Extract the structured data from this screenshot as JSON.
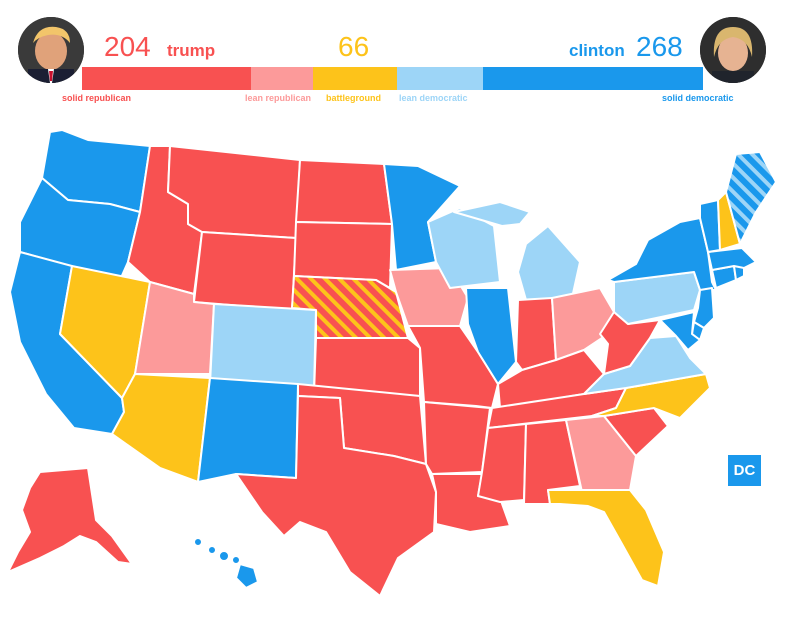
{
  "colors": {
    "solid_republican": "#f85151",
    "lean_republican": "#fc9a9a",
    "battleground": "#fdc31a",
    "lean_democratic": "#9dd5f7",
    "solid_democratic": "#1a98ec"
  },
  "header": {
    "trump": {
      "count": "204",
      "name": "trump"
    },
    "battleground_count": "66",
    "clinton": {
      "name": "clinton",
      "count": "268"
    },
    "segments": [
      {
        "key": "solid_republican",
        "label": "solid republican"
      },
      {
        "key": "lean_republican",
        "label": "lean republican"
      },
      {
        "key": "battleground",
        "label": "battleground"
      },
      {
        "key": "lean_democratic",
        "label": "lean democratic"
      },
      {
        "key": "solid_democratic",
        "label": "solid democratic"
      }
    ]
  },
  "dc": {
    "label": "DC",
    "rating": "solid_democratic"
  },
  "states": {
    "WA": "solid_democratic",
    "OR": "solid_democratic",
    "CA": "solid_democratic",
    "NV": "battleground",
    "ID": "solid_republican",
    "MT": "solid_republican",
    "WY": "solid_republican",
    "UT": "lean_republican",
    "CO": "lean_democratic",
    "AZ": "battleground",
    "NM": "solid_democratic",
    "ND": "solid_republican",
    "SD": "solid_republican",
    "NE": "solid_republican",
    "KS": "solid_republican",
    "OK": "solid_republican",
    "TX": "solid_republican",
    "MN": "solid_democratic",
    "IA": "lean_republican",
    "MO": "solid_republican",
    "AR": "solid_republican",
    "LA": "solid_republican",
    "WI": "lean_democratic",
    "IL": "solid_democratic",
    "MI": "lean_democratic",
    "IN": "solid_republican",
    "OH": "lean_republican",
    "KY": "solid_republican",
    "TN": "solid_republican",
    "MS": "solid_republican",
    "AL": "solid_republican",
    "GA": "lean_republican",
    "FL": "battleground",
    "SC": "solid_republican",
    "NC": "battleground",
    "VA": "lean_democratic",
    "WV": "solid_republican",
    "PA": "lean_democratic",
    "NY": "solid_democratic",
    "VT": "solid_democratic",
    "NH": "battleground",
    "ME": "solid_democratic",
    "MA": "solid_democratic",
    "CT": "solid_democratic",
    "RI": "solid_democratic",
    "NJ": "solid_democratic",
    "DE": "solid_democratic",
    "MD": "solid_democratic",
    "AK": "solid_republican",
    "HI": "solid_democratic"
  },
  "split_states": {
    "NE": {
      "base": "solid_republican",
      "stripe": "battleground"
    },
    "ME": {
      "base": "solid_democratic",
      "stripe": "lean_democratic"
    }
  }
}
